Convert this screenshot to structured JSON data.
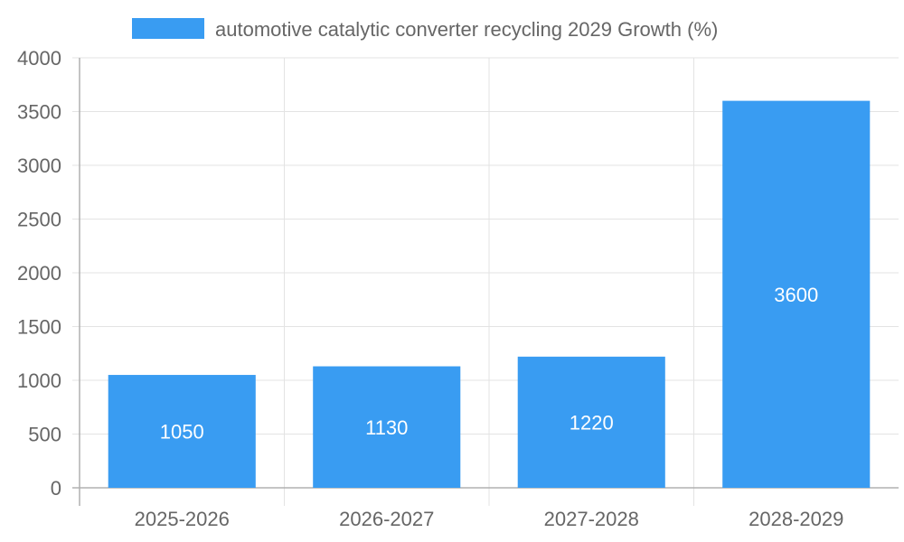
{
  "chart_data": {
    "type": "bar",
    "categories": [
      "2025-2026",
      "2026-2027",
      "2027-2028",
      "2028-2029"
    ],
    "series": [
      {
        "name": "automotive catalytic converter recycling 2029 Growth (%)",
        "values": [
          1050,
          1130,
          1220,
          3600
        ],
        "color": "#399CF2"
      }
    ],
    "yticks": [
      "0",
      "500",
      "1000",
      "1500",
      "2000",
      "2500",
      "3000",
      "3500",
      "4000"
    ],
    "ylim": [
      0,
      4000
    ],
    "grid": true,
    "legend": "top-center",
    "data_labels": true
  }
}
